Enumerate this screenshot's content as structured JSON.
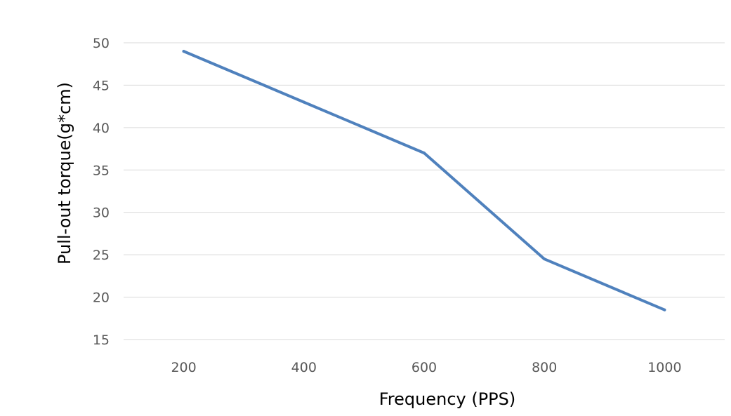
{
  "chart_data": {
    "type": "line",
    "title": "",
    "xlabel": "Frequency (PPS)",
    "ylabel": "Pull-out torque(g*cm)",
    "categories": [
      "200",
      "400",
      "600",
      "800",
      "1000"
    ],
    "ylim": [
      15,
      50
    ],
    "yticks": [
      15,
      20,
      25,
      30,
      35,
      40,
      45,
      50
    ],
    "grid": true,
    "legend": "none",
    "series": [
      {
        "name": "Pull-out torque",
        "color": "#4f81bd",
        "values": [
          49,
          43,
          37,
          24.5,
          18.5
        ]
      }
    ]
  }
}
